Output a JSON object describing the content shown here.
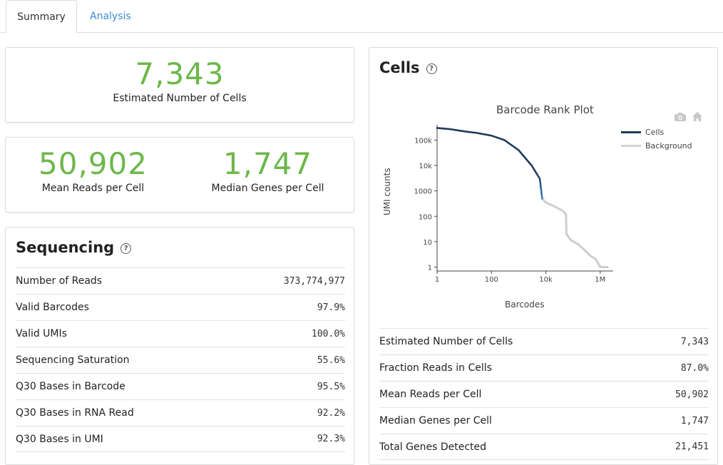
{
  "tabs": [
    {
      "label": "Summary",
      "active": true
    },
    {
      "label": "Analysis",
      "active": false
    }
  ],
  "cells_card": {
    "value": "7,343",
    "label": "Estimated Number of Cells"
  },
  "reads_card": [
    {
      "value": "50,902",
      "label": "Mean Reads per Cell"
    },
    {
      "value": "1,747",
      "label": "Median Genes per Cell"
    }
  ],
  "sequencing": {
    "title": "Sequencing",
    "rows": [
      {
        "label": "Number of Reads",
        "value": "373,774,977"
      },
      {
        "label": "Valid Barcodes",
        "value": "97.9%"
      },
      {
        "label": "Valid UMIs",
        "value": "100.0%"
      },
      {
        "label": "Sequencing Saturation",
        "value": "55.6%"
      },
      {
        "label": "Q30 Bases in Barcode",
        "value": "95.5%"
      },
      {
        "label": "Q30 Bases in RNA Read",
        "value": "92.2%"
      },
      {
        "label": "Q30 Bases in UMI",
        "value": "92.3%"
      }
    ]
  },
  "cells": {
    "title": "Cells",
    "rows": [
      {
        "label": "Estimated Number of Cells",
        "value": "7,343"
      },
      {
        "label": "Fraction Reads in Cells",
        "value": "87.0%"
      },
      {
        "label": "Mean Reads per Cell",
        "value": "50,902"
      },
      {
        "label": "Median Genes per Cell",
        "value": "1,747"
      },
      {
        "label": "Total Genes Detected",
        "value": "21,451"
      }
    ]
  },
  "icons": {
    "help": "?",
    "camera": "camera-icon",
    "home": "home-icon"
  },
  "colors": {
    "accent_green": "#6cb84a",
    "tab_link": "#3a8ad6",
    "cells_dark": "#1f3b5c",
    "cells_blue": "#3d7fc2",
    "background": "#cccccc"
  },
  "chart_data": {
    "type": "line",
    "title": "Barcode Rank Plot",
    "xlabel": "Barcodes",
    "ylabel": "UMI counts",
    "x_scale": "log",
    "y_scale": "log",
    "xlim": [
      1,
      3000000
    ],
    "ylim": [
      0.7,
      400000
    ],
    "x_ticks": [
      {
        "value": 1,
        "label": "1"
      },
      {
        "value": 100,
        "label": "100"
      },
      {
        "value": 10000,
        "label": "10k"
      },
      {
        "value": 1000000,
        "label": "1M"
      }
    ],
    "y_ticks": [
      {
        "value": 1,
        "label": "1"
      },
      {
        "value": 10,
        "label": "10"
      },
      {
        "value": 100,
        "label": "100"
      },
      {
        "value": 1000,
        "label": "1000"
      },
      {
        "value": 10000,
        "label": "10k"
      },
      {
        "value": 100000,
        "label": "100k"
      }
    ],
    "legend_position": "top-right",
    "series": [
      {
        "name": "Cells",
        "points": [
          [
            1,
            300000
          ],
          [
            3,
            270000
          ],
          [
            10,
            220000
          ],
          [
            30,
            190000
          ],
          [
            100,
            150000
          ],
          [
            300,
            100000
          ],
          [
            1000,
            40000
          ],
          [
            3000,
            10000
          ],
          [
            6000,
            3000
          ],
          [
            7343,
            500
          ]
        ]
      },
      {
        "name": "Background",
        "points": [
          [
            7343,
            500
          ],
          [
            10000,
            350
          ],
          [
            20000,
            250
          ],
          [
            40000,
            170
          ],
          [
            55000,
            120
          ],
          [
            57000,
            20
          ],
          [
            80000,
            12
          ],
          [
            150000,
            8
          ],
          [
            250000,
            5
          ],
          [
            400000,
            3
          ],
          [
            700000,
            2
          ],
          [
            1000000,
            1
          ],
          [
            2000000,
            1
          ]
        ]
      }
    ]
  }
}
